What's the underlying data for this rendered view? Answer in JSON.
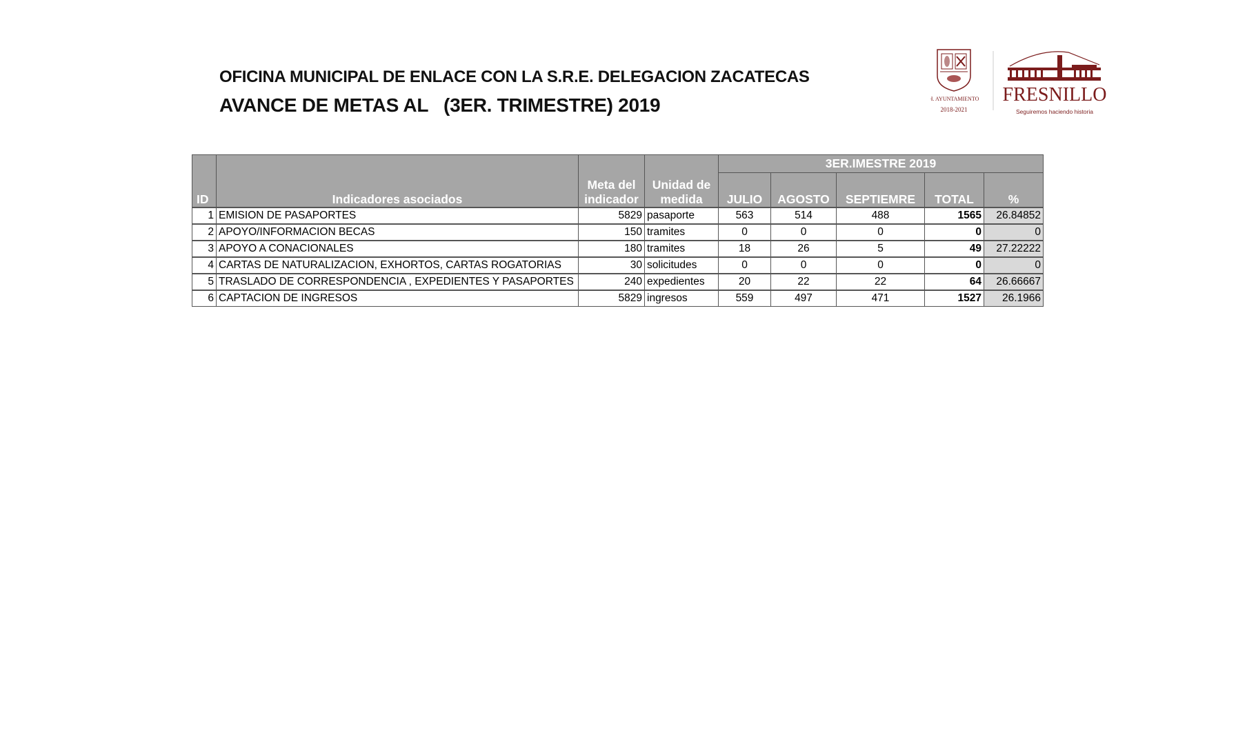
{
  "header": {
    "title_line1": "OFICINA MUNICIPAL DE ENLACE CON LA S.R.E. DELEGACION ZACATECAS",
    "title_line2": "AVANCE DE METAS AL   (3ER. TRIMESTRE) 2019"
  },
  "logos": {
    "seal_caption_1": "H. AYUNTAMIENTO",
    "seal_caption_2": "2018-2021",
    "brand_name": "FRESNILLO",
    "brand_slogan": "Seguiremos haciendo historia",
    "brand_color": "#7b1c1c"
  },
  "table": {
    "group_header": "3ER.IMESTRE 2019",
    "columns": {
      "id": "ID",
      "indicator": "Indicadores asociados",
      "goal": "Meta del indicador",
      "unit": "Unidad de medida",
      "july": "JULIO",
      "august": "AGOSTO",
      "september": "SEPTIEMRE",
      "total": "TOTAL",
      "percent": "%"
    },
    "rows": [
      {
        "id": "1",
        "indicator": "EMISION DE PASAPORTES",
        "goal": "5829",
        "unit": "pasaporte",
        "july": "563",
        "august": "514",
        "september": "488",
        "total": "1565",
        "percent": "26.84852"
      },
      {
        "id": "2",
        "indicator": "APOYO/INFORMACION BECAS",
        "goal": "150",
        "unit": "tramites",
        "july": "0",
        "august": "0",
        "september": "0",
        "total": "0",
        "percent": "0"
      },
      {
        "id": "3",
        "indicator": "APOYO A CONACIONALES",
        "goal": "180",
        "unit": "tramites",
        "july": "18",
        "august": "26",
        "september": "5",
        "total": "49",
        "percent": "27.22222"
      },
      {
        "id": "4",
        "indicator": "CARTAS DE NATURALIZACION, EXHORTOS, CARTAS ROGATORIAS",
        "goal": "30",
        "unit": "solicitudes",
        "july": "0",
        "august": "0",
        "september": "0",
        "total": "0",
        "percent": "0"
      },
      {
        "id": "5",
        "indicator": "TRASLADO DE CORRESPONDENCIA , EXPEDIENTES Y PASAPORTES",
        "goal": "240",
        "unit": "expedientes",
        "july": "20",
        "august": "22",
        "september": "22",
        "total": "64",
        "percent": "26.66667"
      },
      {
        "id": "6",
        "indicator": "CAPTACION DE INGRESOS",
        "goal": "5829",
        "unit": "ingresos",
        "july": "559",
        "august": "497",
        "september": "471",
        "total": "1527",
        "percent": "26.1966"
      }
    ]
  }
}
